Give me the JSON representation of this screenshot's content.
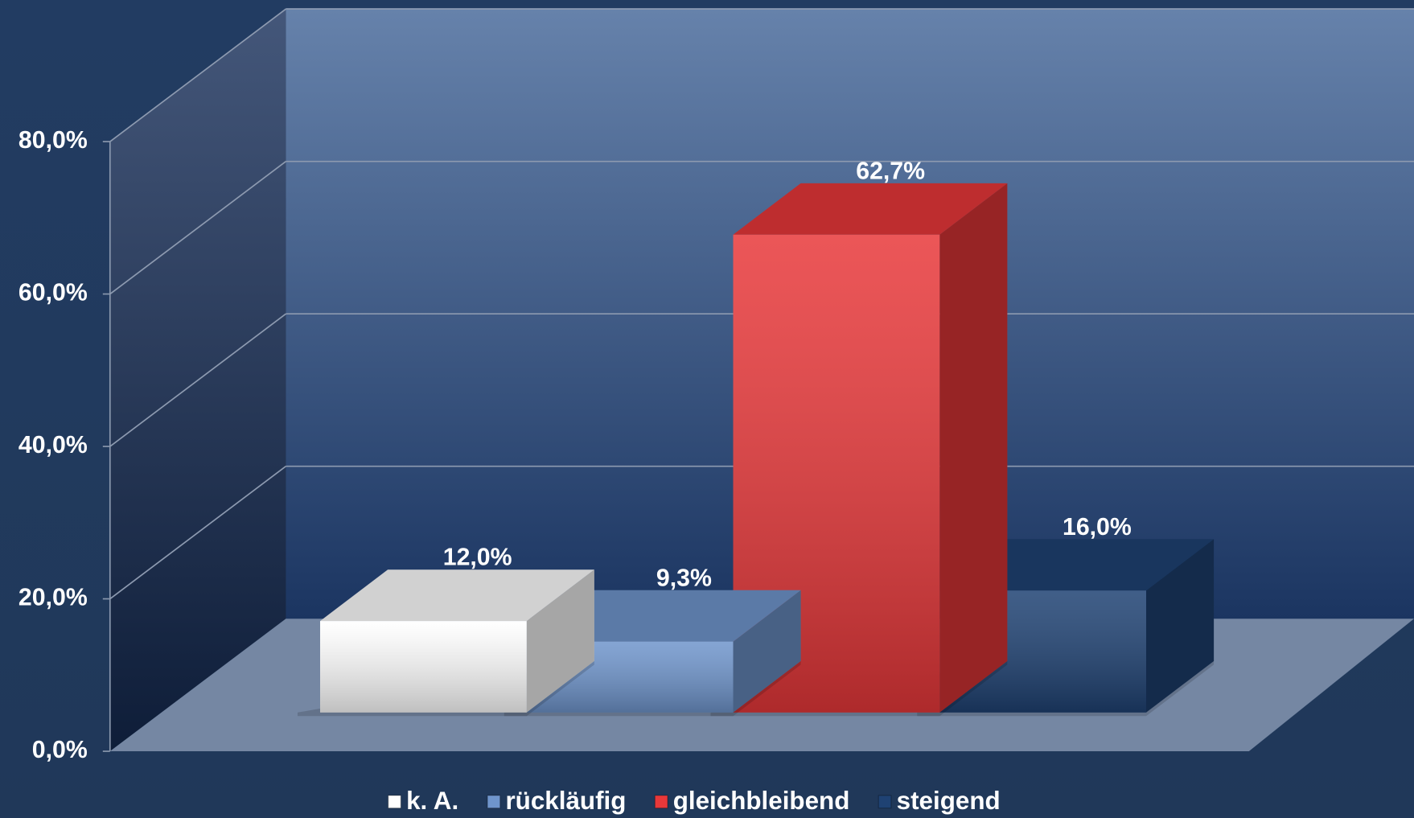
{
  "chart_data": {
    "type": "bar3d",
    "categories": [
      null
    ],
    "series": [
      {
        "name": "k. A.",
        "color": "#ffffff",
        "values": [
          12.0
        ],
        "value_labels": [
          "12,0%"
        ]
      },
      {
        "name": "rückläufig",
        "color": "#6f95cc",
        "values": [
          9.3
        ],
        "value_labels": [
          "9,3%"
        ]
      },
      {
        "name": "gleichbleibend",
        "color": "#e8383a",
        "values": [
          62.7
        ],
        "value_labels": [
          "62,7%"
        ]
      },
      {
        "name": "steigend",
        "color": "#1f4273",
        "values": [
          16.0
        ],
        "value_labels": [
          "16,0%"
        ]
      }
    ],
    "ylim": [
      0,
      80
    ],
    "yticks": [
      {
        "value": 0,
        "label": "0,0%"
      },
      {
        "value": 20,
        "label": "20,0%"
      },
      {
        "value": 40,
        "label": "40,0%"
      },
      {
        "value": 60,
        "label": "60,0%"
      },
      {
        "value": 80,
        "label": "80,0%"
      }
    ],
    "grid": true,
    "legend": "bottom"
  }
}
